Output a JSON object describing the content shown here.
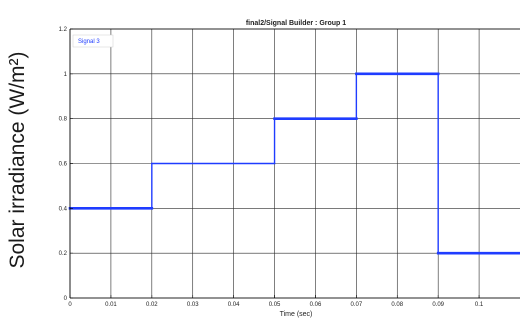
{
  "chart_data": {
    "type": "line",
    "title": "final2/Signal Builder : Group 1",
    "xlabel": "Time (sec)",
    "ylabel": "Solar irradiance (W/m²)",
    "xlim": [
      0,
      0.11
    ],
    "ylim": [
      0,
      1.2
    ],
    "x_ticks": [
      "0",
      "0.01",
      "0.02",
      "0.03",
      "0.04",
      "0.05",
      "0.06",
      "0.07",
      "0.08",
      "0.09",
      "0.1"
    ],
    "y_ticks": [
      "0",
      "0.2",
      "0.4",
      "0.6",
      "0.8",
      "1",
      "1.2"
    ],
    "grid": true,
    "legend_position": "top-left",
    "series": [
      {
        "name": "Signal 3",
        "color": "#1f3cff",
        "step": true,
        "x": [
          0,
          0.02,
          0.02,
          0.05,
          0.05,
          0.07,
          0.07,
          0.09,
          0.09,
          0.11
        ],
        "y": [
          0.4,
          0.4,
          0.6,
          0.6,
          0.8,
          0.8,
          1.0,
          1.0,
          0.2,
          0.2
        ]
      }
    ]
  }
}
